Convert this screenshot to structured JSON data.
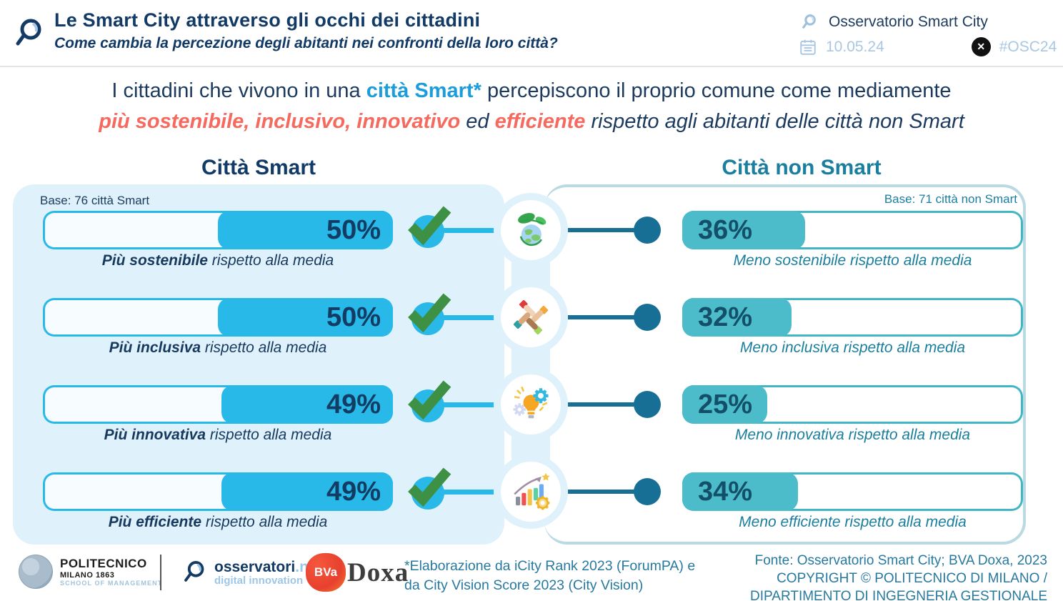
{
  "header": {
    "title": "Le Smart City attraverso gli occhi dei cittadini",
    "subtitle": "Come cambia la percezione degli abitanti nei confronti della loro città?",
    "brand": "Osservatorio Smart City",
    "date": "10.05.24",
    "hashtag": "#OSC24"
  },
  "intro": {
    "line1_pre": "I cittadini che vivono in una ",
    "line1_highlight": "città Smart",
    "line1_star": "*",
    "line1_post": " percepiscono il proprio comune come mediamente",
    "line2_h1": "più sostenibile, inclusivo, innovativo",
    "line2_mid": " ed ",
    "line2_h2": "efficiente",
    "line2_post": " rispetto agli abitanti delle città non Smart"
  },
  "smart": {
    "title": "Città Smart",
    "base": "Base: 76 città Smart",
    "rows": [
      {
        "value": 50,
        "pct": "50%",
        "label_bold": "Più sostenibile",
        "label_rest": " rispetto alla media",
        "icon": "globe-leaves-icon"
      },
      {
        "value": 50,
        "pct": "50%",
        "label_bold": "Più inclusiva",
        "label_rest": " rispetto alla media",
        "icon": "joined-hands-icon"
      },
      {
        "value": 49,
        "pct": "49%",
        "label_bold": "Più innovativa",
        "label_rest": " rispetto alla media",
        "icon": "lightbulb-gears-icon"
      },
      {
        "value": 49,
        "pct": "49%",
        "label_bold": "Più efficiente",
        "label_rest": " rispetto alla media",
        "icon": "growth-chart-icon"
      }
    ]
  },
  "nonsmart": {
    "title": "Città non Smart",
    "base": "Base: 71 città non Smart",
    "rows": [
      {
        "value": 36,
        "pct": "36%",
        "label": "Meno sostenibile rispetto alla media"
      },
      {
        "value": 32,
        "pct": "32%",
        "label": "Meno inclusiva rispetto alla media"
      },
      {
        "value": 25,
        "pct": "25%",
        "label": "Meno innovativa rispetto alla media"
      },
      {
        "value": 34,
        "pct": "34%",
        "label": "Meno efficiente rispetto alla media"
      }
    ]
  },
  "chart_data": {
    "type": "bar",
    "title": "Le Smart City attraverso gli occhi dei cittadini",
    "subtitle": "Come cambia la percezione degli abitanti nei confronti della loro città?",
    "categories": [
      "Sostenibile",
      "Inclusiva",
      "Innovativa",
      "Efficiente"
    ],
    "series": [
      {
        "name": "Città Smart",
        "base": "Base: 76 città Smart",
        "values": [
          50,
          50,
          49,
          49
        ]
      },
      {
        "name": "Città non Smart",
        "base": "Base: 71 città non Smart",
        "values": [
          36,
          32,
          25,
          34
        ]
      }
    ],
    "unit": "%",
    "xlim": [
      0,
      100
    ],
    "layout": "mirrored horizontal bars, smart bars fill right-aligned, non-smart bars fill left-aligned"
  },
  "footer": {
    "polimi_line1": "POLITECNICO",
    "polimi_line2": "MILANO 1863",
    "polimi_line3": "SCHOOL OF MANAGEMENT",
    "osservatori_name": "osservatori",
    "osservatori_net": ".net",
    "osservatori_sub": "digital innovation",
    "bva": "BVa",
    "doxa": "Doxa",
    "footnote_line1": "*Elaborazione da iCity Rank 2023 (ForumPA) e",
    "footnote_line2": "da City Vision Score 2023 (City Vision)",
    "fonte_line1": "Fonte: Osservatorio Smart City; BVA Doxa, 2023",
    "fonte_line2": "COPYRIGHT © POLITECNICO DI MILANO /",
    "fonte_line3": "DIPARTIMENTO DI INGEGNERIA GESTIONALE"
  },
  "colors": {
    "navy": "#123a66",
    "cyan": "#29b9e8",
    "teal": "#1a7f9e",
    "dark_teal": "#176f96",
    "nonsmart_fill": "#4dbcca",
    "coral": "#f5695e",
    "panel_blue": "#dff1fb",
    "light_blue_accent": "#a9c7e2",
    "check_green": "#3e9144"
  }
}
